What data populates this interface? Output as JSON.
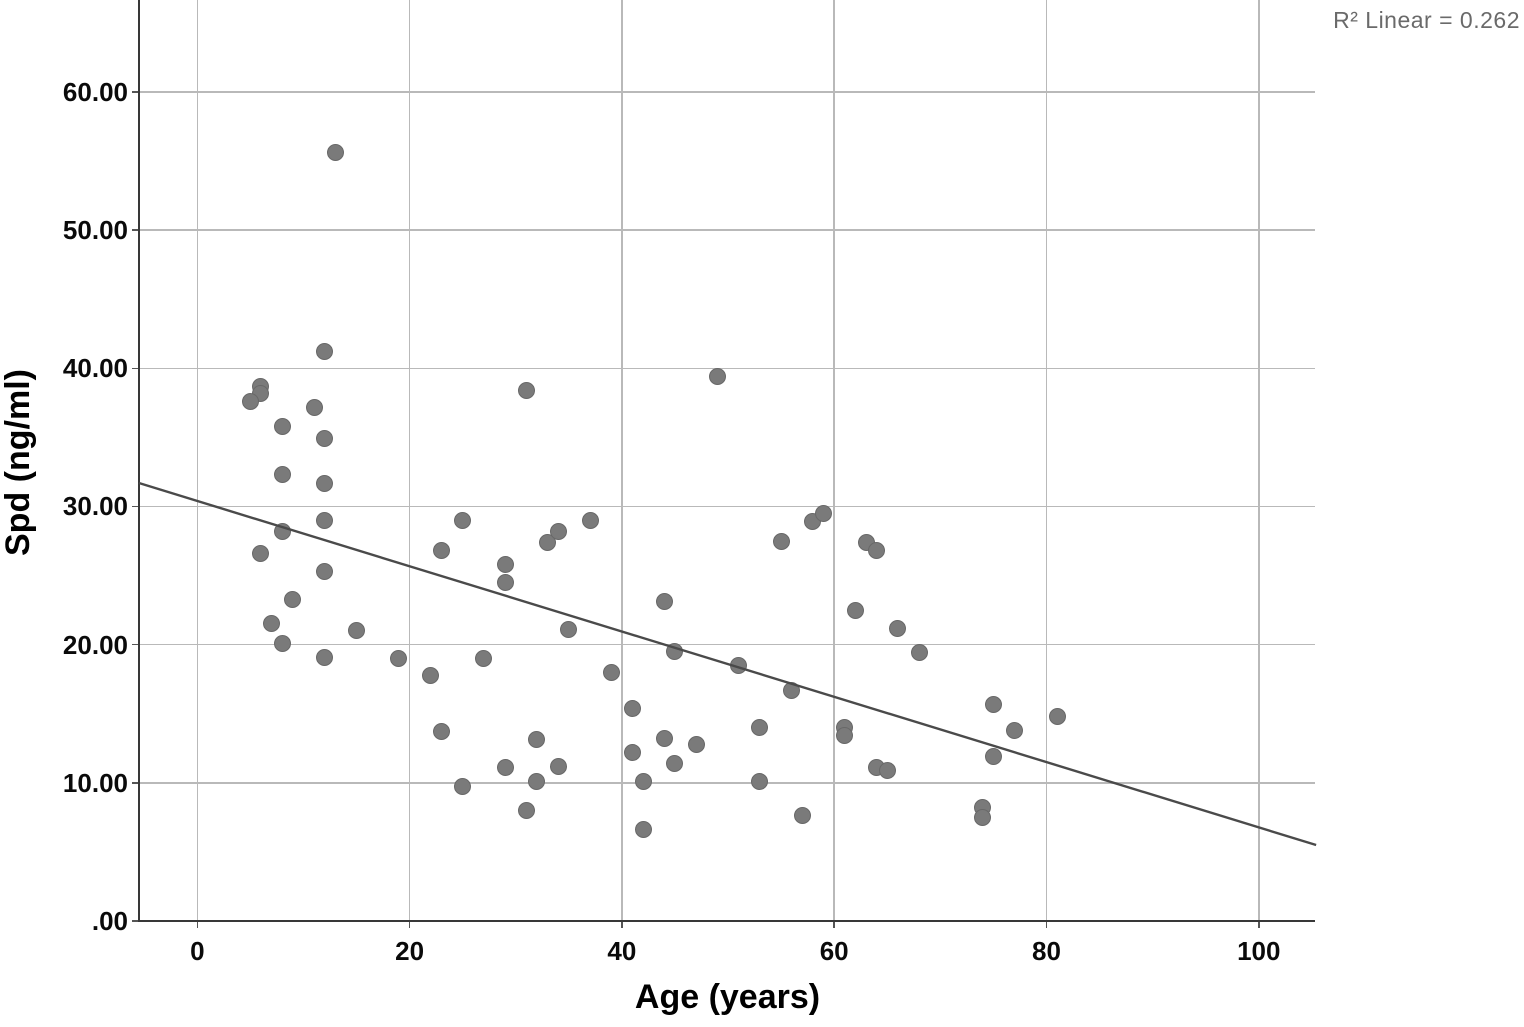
{
  "annotation": {
    "r2_label": "R² Linear = 0.262"
  },
  "chart_data": {
    "type": "scatter",
    "title": "",
    "xlabel": "Age (years)",
    "ylabel": "Spd (ng/ml)",
    "x_ticks": [
      0,
      20,
      40,
      60,
      80,
      100
    ],
    "x_tick_labels": [
      "0",
      "20",
      "40",
      "60",
      "80",
      "100"
    ],
    "y_ticks": [
      0,
      10,
      20,
      30,
      40,
      50,
      60
    ],
    "y_tick_labels": [
      ".00",
      "10.00",
      "20.00",
      "30.00",
      "40.00",
      "50.00",
      "60.00"
    ],
    "xlim": [
      -5.5,
      105.4
    ],
    "ylim": [
      0,
      66.6
    ],
    "grid": true,
    "legend": "none",
    "r_squared": 0.262,
    "fit_line": {
      "x1": -5.5,
      "y1": 31.7,
      "x2": 105.4,
      "y2": 5.5
    },
    "points": [
      [
        13,
        55.6
      ],
      [
        12,
        41.2
      ],
      [
        6,
        38.7
      ],
      [
        6,
        38.2
      ],
      [
        5,
        37.6
      ],
      [
        11,
        37.2
      ],
      [
        8,
        35.8
      ],
      [
        12,
        34.9
      ],
      [
        8,
        32.3
      ],
      [
        12,
        31.7
      ],
      [
        12,
        29.0
      ],
      [
        8,
        28.2
      ],
      [
        6,
        26.6
      ],
      [
        12,
        25.3
      ],
      [
        9,
        23.3
      ],
      [
        7,
        21.5
      ],
      [
        8,
        20.1
      ],
      [
        12,
        19.1
      ],
      [
        15,
        21.0
      ],
      [
        19,
        19.0
      ],
      [
        22,
        17.8
      ],
      [
        23,
        13.7
      ],
      [
        25,
        29.0
      ],
      [
        23,
        26.8
      ],
      [
        29,
        25.8
      ],
      [
        29,
        24.5
      ],
      [
        31,
        38.4
      ],
      [
        33,
        27.4
      ],
      [
        34,
        28.2
      ],
      [
        37,
        29.0
      ],
      [
        35,
        21.1
      ],
      [
        27,
        19.0
      ],
      [
        25,
        9.7
      ],
      [
        29,
        11.1
      ],
      [
        31,
        8.0
      ],
      [
        32,
        13.1
      ],
      [
        32,
        10.1
      ],
      [
        34,
        11.2
      ],
      [
        39,
        18.0
      ],
      [
        41,
        15.4
      ],
      [
        41,
        12.2
      ],
      [
        42,
        10.1
      ],
      [
        42,
        6.6
      ],
      [
        44,
        23.1
      ],
      [
        44,
        13.2
      ],
      [
        45,
        19.5
      ],
      [
        45,
        11.4
      ],
      [
        47,
        12.8
      ],
      [
        49,
        39.4
      ],
      [
        51,
        18.5
      ],
      [
        53,
        14.0
      ],
      [
        53,
        10.1
      ],
      [
        55,
        27.5
      ],
      [
        56,
        16.7
      ],
      [
        57,
        7.6
      ],
      [
        58,
        28.9
      ],
      [
        59,
        29.5
      ],
      [
        61,
        14.0
      ],
      [
        61,
        13.4
      ],
      [
        62,
        22.5
      ],
      [
        63,
        27.4
      ],
      [
        64,
        26.8
      ],
      [
        64,
        11.1
      ],
      [
        65,
        10.9
      ],
      [
        66,
        21.2
      ],
      [
        68,
        19.4
      ],
      [
        74,
        8.2
      ],
      [
        74,
        7.5
      ],
      [
        75,
        15.7
      ],
      [
        77,
        13.8
      ],
      [
        75,
        11.9
      ],
      [
        81,
        14.8
      ]
    ],
    "colors": {
      "point": "#7a7a7a",
      "point_border": "#686868",
      "grid": "#b9b9b9",
      "axis": "#383838",
      "fit_line": "#4a4a4a",
      "annotation_text": "#6a6a6a",
      "label_text": "#000000"
    }
  }
}
